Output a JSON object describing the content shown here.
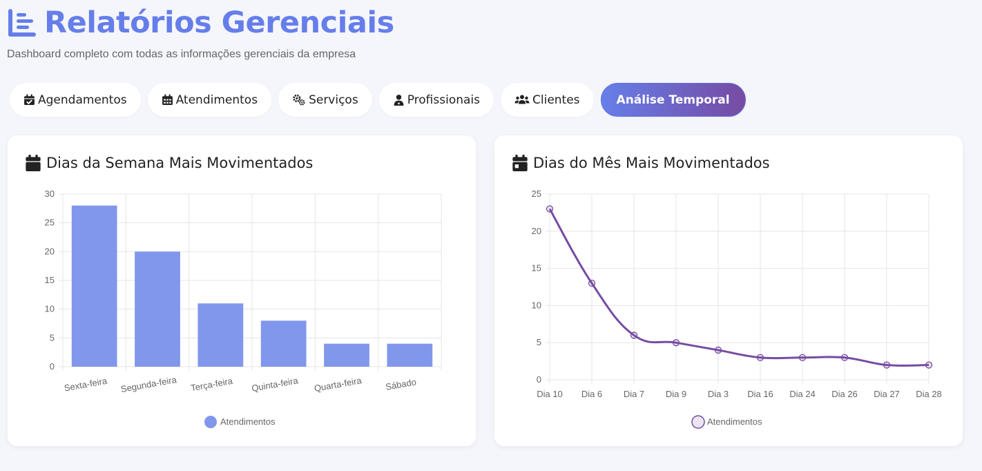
{
  "header": {
    "title": "Relatórios Gerenciais",
    "title_icon": "list-icon",
    "subtitle": "Dashboard completo com todas as informações gerenciais da empresa"
  },
  "tabs": [
    {
      "label": "Agendamentos",
      "icon": "calendar-check-icon",
      "active": false
    },
    {
      "label": "Atendimentos",
      "icon": "calendar-grid-icon",
      "active": false
    },
    {
      "label": "Serviços",
      "icon": "gears-icon",
      "active": false
    },
    {
      "label": "Profissionais",
      "icon": "user-doctor-icon",
      "active": false
    },
    {
      "label": "Clientes",
      "icon": "users-icon",
      "active": false
    },
    {
      "label": "Análise Temporal",
      "icon": "",
      "active": true
    }
  ],
  "colors": {
    "accent": "#667eea",
    "accent2": "#764ba2",
    "bar_fill": "#8197ec",
    "line": "#764ba2"
  },
  "chart_data": [
    {
      "type": "bar",
      "title": "Dias da Semana Mais Movimentados",
      "categories": [
        "Sexta-feira",
        "Segunda-feira",
        "Terça-feira",
        "Quinta-feira",
        "Quarta-feira",
        "Sábado"
      ],
      "series": [
        {
          "name": "Atendimentos",
          "values": [
            28,
            20,
            11,
            8,
            4,
            4
          ]
        }
      ],
      "ylim": [
        0,
        30
      ],
      "yticks": [
        0,
        5,
        10,
        15,
        20,
        25,
        30
      ],
      "grid": true,
      "legend": "bottom"
    },
    {
      "type": "line",
      "title": "Dias do Mês Mais Movimentados",
      "categories": [
        "Dia 10",
        "Dia 6",
        "Dia 7",
        "Dia 9",
        "Dia 3",
        "Dia 16",
        "Dia 24",
        "Dia 26",
        "Dia 27",
        "Dia 28"
      ],
      "series": [
        {
          "name": "Atendimentos",
          "values": [
            23,
            13,
            6,
            5,
            4,
            3,
            3,
            3,
            2,
            2
          ]
        }
      ],
      "ylim": [
        0,
        25
      ],
      "yticks": [
        0,
        5,
        10,
        15,
        20,
        25
      ],
      "grid": true,
      "legend": "bottom"
    }
  ]
}
